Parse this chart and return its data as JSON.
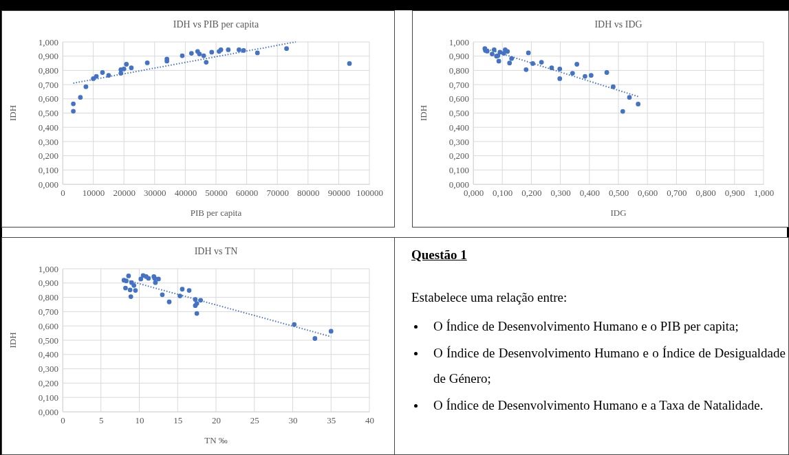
{
  "chart_data": [
    {
      "type": "scatter",
      "title": "IDH vs PIB per capita",
      "xlabel": "PIB per capita",
      "ylabel": "IDH",
      "xlim": [
        0,
        100000
      ],
      "xticks": [
        0,
        10000,
        20000,
        30000,
        40000,
        50000,
        60000,
        70000,
        80000,
        90000,
        100000
      ],
      "ylim": [
        0,
        1
      ],
      "yticks": [
        {
          "value": 0,
          "label": "0,000"
        },
        {
          "value": 0.1,
          "label": "0,100"
        },
        {
          "value": 0.2,
          "label": "0,200"
        },
        {
          "value": 0.3,
          "label": "0,300"
        },
        {
          "value": 0.4,
          "label": "0,400"
        },
        {
          "value": 0.5,
          "label": "0,500"
        },
        {
          "value": 0.6,
          "label": "0,600"
        },
        {
          "value": 0.7,
          "label": "0,700"
        },
        {
          "value": 0.8,
          "label": "0,800"
        },
        {
          "value": 0.9,
          "label": "0,900"
        },
        {
          "value": 1,
          "label": "1,000"
        }
      ],
      "grid": true,
      "marker": "circle",
      "series": [
        {
          "color": "#4472c4",
          "x": [
            3500,
            3500,
            5800,
            7600,
            10000,
            11000,
            13000,
            15000,
            19000,
            19000,
            20000,
            20800,
            22400,
            27600,
            34000,
            34000,
            39000,
            42000,
            44000,
            44600,
            46000,
            46800,
            48600,
            51000,
            51600,
            54000,
            57500,
            59000,
            63500,
            73000,
            93500
          ],
          "values": [
            0.565,
            0.513,
            0.61,
            0.685,
            0.742,
            0.758,
            0.785,
            0.765,
            0.78,
            0.805,
            0.81,
            0.843,
            0.818,
            0.853,
            0.88,
            0.865,
            0.903,
            0.92,
            0.933,
            0.915,
            0.903,
            0.857,
            0.928,
            0.933,
            0.945,
            0.945,
            0.945,
            0.94,
            0.923,
            0.953,
            0.848
          ]
        },
        {
          "type": "line",
          "color": "#4472c4",
          "line_style": "dotted",
          "marker": "none",
          "x": [
            3500,
            76000
          ],
          "values": [
            0.71,
            1.0
          ]
        }
      ]
    },
    {
      "type": "scatter",
      "title": "IDH vs IDG",
      "xlabel": "IDG",
      "ylabel": "IDH",
      "xlim": [
        0,
        1
      ],
      "xticks": [
        {
          "value": 0,
          "label": "0,000"
        },
        {
          "value": 0.1,
          "label": "0,100"
        },
        {
          "value": 0.2,
          "label": "0,200"
        },
        {
          "value": 0.3,
          "label": "0,300"
        },
        {
          "value": 0.4,
          "label": "0,400"
        },
        {
          "value": 0.5,
          "label": "0,500"
        },
        {
          "value": 0.6,
          "label": "0,600"
        },
        {
          "value": 0.7,
          "label": "0,700"
        },
        {
          "value": 0.8,
          "label": "0,800"
        },
        {
          "value": 0.9,
          "label": "0,900"
        },
        {
          "value": 1,
          "label": "1,000"
        }
      ],
      "ylim": [
        0,
        1
      ],
      "yticks": [
        {
          "value": 0,
          "label": "0,000"
        },
        {
          "value": 0.1,
          "label": "0,100"
        },
        {
          "value": 0.2,
          "label": "0,200"
        },
        {
          "value": 0.3,
          "label": "0,300"
        },
        {
          "value": 0.4,
          "label": "0,400"
        },
        {
          "value": 0.5,
          "label": "0,500"
        },
        {
          "value": 0.6,
          "label": "0,600"
        },
        {
          "value": 0.7,
          "label": "0,700"
        },
        {
          "value": 0.8,
          "label": "0,800"
        },
        {
          "value": 0.9,
          "label": "0,900"
        },
        {
          "value": 1,
          "label": "1,000"
        }
      ],
      "grid": true,
      "marker": "circle",
      "series": [
        {
          "color": "#4472c4",
          "x": [
            0.04,
            0.042,
            0.048,
            0.065,
            0.072,
            0.08,
            0.085,
            0.088,
            0.092,
            0.105,
            0.11,
            0.118,
            0.125,
            0.132,
            0.182,
            0.19,
            0.205,
            0.235,
            0.27,
            0.298,
            0.298,
            0.342,
            0.357,
            0.385,
            0.406,
            0.46,
            0.482,
            0.515,
            0.538,
            0.568
          ],
          "values": [
            0.953,
            0.94,
            0.935,
            0.915,
            0.945,
            0.9,
            0.903,
            0.865,
            0.928,
            0.92,
            0.945,
            0.933,
            0.852,
            0.883,
            0.805,
            0.923,
            0.848,
            0.857,
            0.818,
            0.81,
            0.742,
            0.78,
            0.843,
            0.758,
            0.765,
            0.785,
            0.685,
            0.512,
            0.61,
            0.563
          ]
        },
        {
          "type": "line",
          "color": "#4472c4",
          "line_style": "dotted",
          "marker": "none",
          "x": [
            0.04,
            0.57
          ],
          "values": [
            0.955,
            0.615
          ]
        }
      ]
    },
    {
      "type": "scatter",
      "title": "IDH vs TN",
      "xlabel": "TN ‰",
      "ylabel": "IDH",
      "xlim": [
        0,
        40
      ],
      "xticks": [
        0,
        5,
        10,
        15,
        20,
        25,
        30,
        35,
        40
      ],
      "ylim": [
        0,
        1
      ],
      "yticks": [
        {
          "value": 0,
          "label": "0,000"
        },
        {
          "value": 0.1,
          "label": "0,100"
        },
        {
          "value": 0.2,
          "label": "0,200"
        },
        {
          "value": 0.3,
          "label": "0,300"
        },
        {
          "value": 0.4,
          "label": "0,400"
        },
        {
          "value": 0.5,
          "label": "0,500"
        },
        {
          "value": 0.6,
          "label": "0,600"
        },
        {
          "value": 0.7,
          "label": "0,700"
        },
        {
          "value": 0.8,
          "label": "0,800"
        },
        {
          "value": 0.9,
          "label": "0,900"
        },
        {
          "value": 1,
          "label": "1,000"
        }
      ],
      "grid": true,
      "marker": "circle",
      "series": [
        {
          "color": "#4472c4",
          "x": [
            8.0,
            8.3,
            8.6,
            8.2,
            8.8,
            8.9,
            9.0,
            9.3,
            9.5,
            10.2,
            10.5,
            10.9,
            11.2,
            11.9,
            12.0,
            12.1,
            12.5,
            13.0,
            13.9,
            15.3,
            15.6,
            16.5,
            17.3,
            17.3,
            17.5,
            17.5,
            18.0,
            30.2,
            32.9,
            35.0
          ],
          "values": [
            0.92,
            0.915,
            0.95,
            0.865,
            0.852,
            0.805,
            0.903,
            0.883,
            0.848,
            0.928,
            0.953,
            0.945,
            0.933,
            0.945,
            0.933,
            0.903,
            0.928,
            0.818,
            0.768,
            0.81,
            0.857,
            0.848,
            0.785,
            0.742,
            0.757,
            0.687,
            0.78,
            0.61,
            0.512,
            0.563
          ]
        },
        {
          "type": "line",
          "color": "#4472c4",
          "line_style": "dotted",
          "marker": "none",
          "x": [
            8.0,
            35.0
          ],
          "values": [
            0.925,
            0.525
          ]
        }
      ]
    },
    {
      "type": "other",
      "title": "Questão 1",
      "annotations": [
        "Estabelece uma relação entre:",
        "O Índice de Desenvolvimento Humano e o PIB per capita;",
        "O Índice de Desenvolvimento Humano e o Índice de Desigualdade de Género;",
        "O Índice de Desenvolvimento Humano e a Taxa de Natalidade."
      ]
    }
  ]
}
